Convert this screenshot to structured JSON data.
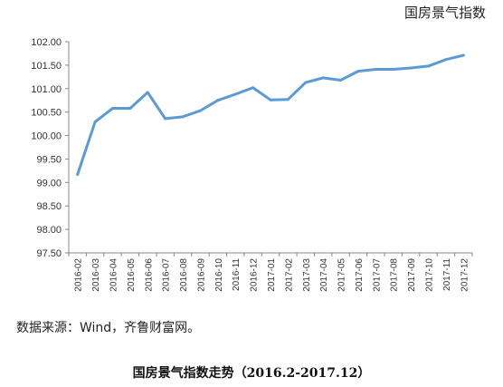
{
  "chart_data": {
    "type": "line",
    "title": "",
    "xlabel": "",
    "ylabel": "",
    "legend": {
      "label": "国房景气指数",
      "placement": "top-right"
    },
    "series": [
      {
        "name": "国房景气指数",
        "color": "#5b9bd5",
        "values": [
          99.17,
          100.29,
          100.58,
          100.58,
          100.92,
          100.36,
          100.4,
          100.53,
          100.75,
          100.88,
          101.02,
          100.76,
          100.77,
          101.13,
          101.23,
          101.18,
          101.37,
          101.41,
          101.41,
          101.44,
          101.48,
          101.62,
          101.71
        ]
      }
    ],
    "categories": [
      "2016-02",
      "2016-03",
      "2016-04",
      "2016-05",
      "2016-06",
      "2016-07",
      "2016-08",
      "2016-09",
      "2016-10",
      "2016-11",
      "2016-12",
      "2017-01",
      "2017-02",
      "2017-03",
      "2017-04",
      "2017-05",
      "2017-06",
      "2017-07",
      "2017-08",
      "2017-09",
      "2017-10",
      "2017-11",
      "2017-12"
    ],
    "ylim": [
      97.5,
      102.0
    ],
    "yticks": [
      "97.50",
      "98.00",
      "98.50",
      "99.00",
      "99.50",
      "100.00",
      "100.50",
      "101.00",
      "101.50",
      "102.00"
    ],
    "grid": false
  },
  "source_note": "数据来源：Wind，齐鲁财富网。",
  "caption": "国房景气指数走势（2016.2-2017.12）"
}
